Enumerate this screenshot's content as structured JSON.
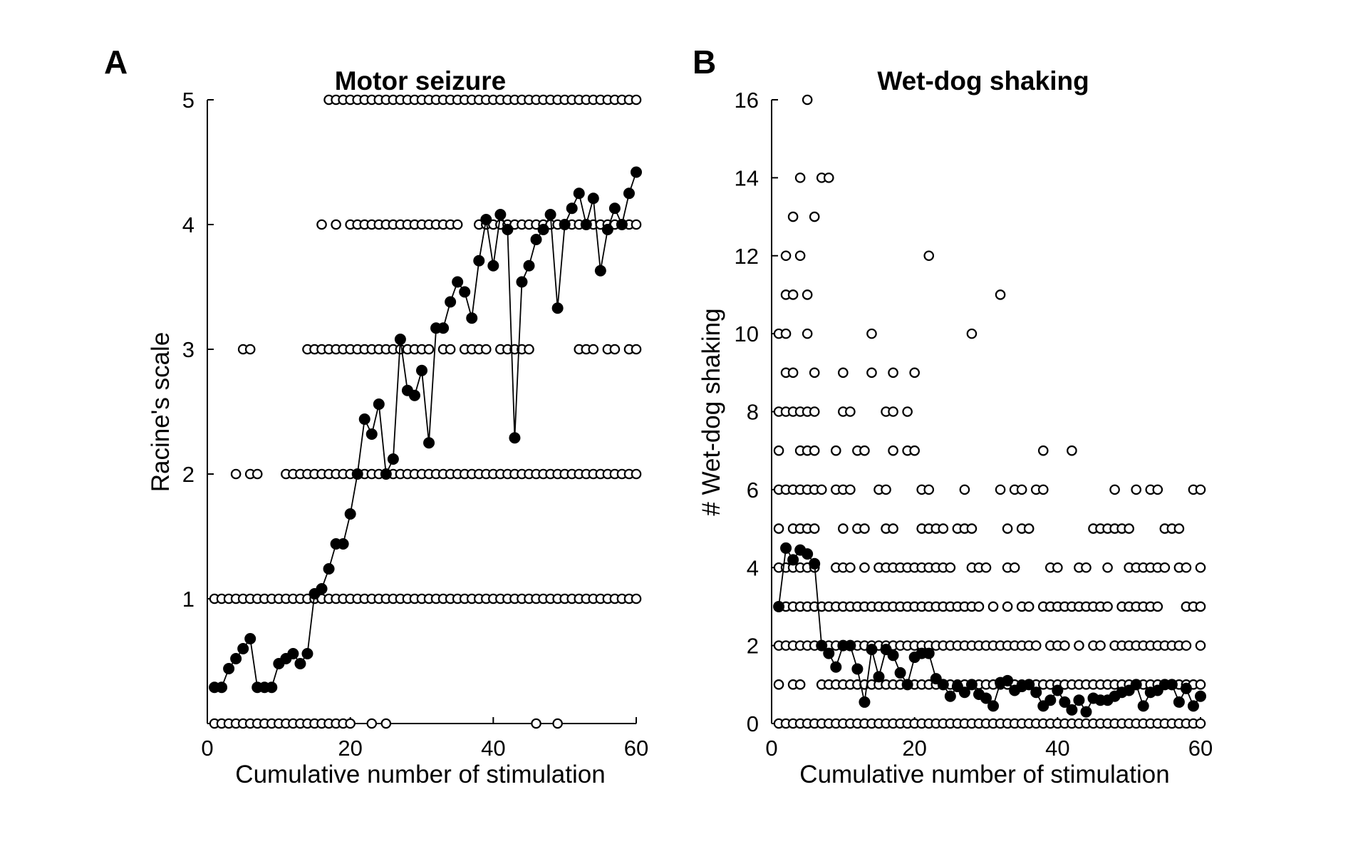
{
  "panels": [
    {
      "letter": "A",
      "title": "Motor seizure",
      "xlabel": "Cumulative number of stimulation",
      "ylabel": "Racine's scale",
      "xticks": [
        "0",
        "20",
        "40",
        "60"
      ],
      "yticks": [
        "1",
        "2",
        "3",
        "4",
        "5"
      ]
    },
    {
      "letter": "B",
      "title": "Wet-dog shaking",
      "xlabel": "Cumulative number of stimulation",
      "ylabel": "# Wet-dog shaking",
      "xticks": [
        "0",
        "20",
        "40",
        "60"
      ],
      "yticks": [
        "0",
        "2",
        "4",
        "6",
        "8",
        "10",
        "12",
        "14",
        "16"
      ]
    }
  ],
  "chart_data": [
    {
      "type": "scatter",
      "title": "Motor seizure",
      "xlabel": "Cumulative number of stimulation",
      "ylabel": "Racine's scale",
      "xlim": [
        0,
        60
      ],
      "ylim": [
        0,
        5
      ],
      "xticks": [
        0,
        20,
        40,
        60
      ],
      "yticks": [
        1,
        2,
        3,
        4,
        5
      ],
      "individual_points": {
        "style": "open-circle",
        "levels": [
          {
            "y": 0,
            "x_ranges": [
              [
                1,
                20
              ]
            ],
            "x_single": [
              23,
              25,
              46,
              49
            ]
          },
          {
            "y": 1,
            "x_ranges": [
              [
                1,
                60
              ]
            ],
            "x_single": []
          },
          {
            "y": 2,
            "x_ranges": [
              [
                11,
                60
              ]
            ],
            "x_single": [
              4,
              6,
              7
            ]
          },
          {
            "y": 3,
            "x_ranges": [
              [
                14,
                31
              ],
              [
                33,
                34
              ]
            ],
            "x_single": [
              5,
              6,
              36,
              37,
              38,
              39,
              41,
              42,
              43,
              44,
              45,
              52,
              53,
              54,
              56,
              57,
              59,
              60
            ]
          },
          {
            "y": 4,
            "x_ranges": [
              [
                20,
                35
              ],
              [
                38,
                60
              ]
            ],
            "x_single": [
              16,
              18
            ]
          },
          {
            "y": 5,
            "x_ranges": [
              [
                17,
                60
              ]
            ],
            "x_single": []
          }
        ]
      },
      "mean_series": {
        "style": "filled-circle-line",
        "x": [
          1,
          2,
          3,
          4,
          5,
          6,
          7,
          8,
          9,
          10,
          11,
          12,
          13,
          14,
          15,
          16,
          17,
          18,
          19,
          20,
          21,
          22,
          23,
          24,
          25,
          26,
          27,
          28,
          29,
          30,
          31,
          32,
          33,
          34,
          35,
          36,
          37,
          38,
          39,
          40,
          41,
          42,
          43,
          44,
          45,
          46,
          47,
          48,
          49,
          50,
          51,
          52,
          53,
          54,
          55,
          56,
          57,
          58,
          59,
          60
        ],
        "y": [
          0.29,
          0.29,
          0.44,
          0.52,
          0.6,
          0.68,
          0.29,
          0.29,
          0.29,
          0.48,
          0.52,
          0.56,
          0.48,
          0.56,
          1.04,
          1.08,
          1.24,
          1.44,
          1.44,
          1.68,
          2.0,
          2.44,
          2.32,
          2.56,
          2.0,
          2.12,
          3.08,
          2.67,
          2.63,
          2.83,
          2.25,
          3.17,
          3.17,
          3.38,
          3.54,
          3.46,
          3.25,
          3.71,
          4.04,
          3.67,
          4.08,
          3.96,
          2.29,
          3.54,
          3.67,
          3.88,
          3.96,
          4.08,
          3.33,
          4.0,
          4.13,
          4.25,
          4.0,
          4.21,
          3.63,
          3.96,
          4.13,
          4.0,
          4.25,
          4.42
        ]
      }
    },
    {
      "type": "scatter",
      "title": "Wet-dog shaking",
      "xlabel": "Cumulative number of stimulation",
      "ylabel": "# Wet-dog shaking",
      "xlim": [
        0,
        60
      ],
      "ylim": [
        0,
        16
      ],
      "xticks": [
        0,
        20,
        40,
        60
      ],
      "yticks": [
        0,
        2,
        4,
        6,
        8,
        10,
        12,
        14,
        16
      ],
      "individual_points": {
        "style": "open-circle",
        "levels": [
          {
            "y": 0,
            "x_ranges": [
              [
                1,
                60
              ]
            ],
            "x_single": []
          },
          {
            "y": 1,
            "x_ranges": [
              [
                7,
                60
              ]
            ],
            "x_single": [
              1,
              3,
              4
            ]
          },
          {
            "y": 2,
            "x_ranges": [
              [
                1,
                30
              ],
              [
                31,
                37
              ],
              [
                39,
                41
              ]
            ],
            "x_single": [
              43,
              45,
              46,
              48,
              49,
              50,
              51,
              52,
              53,
              54,
              55,
              56,
              57,
              58,
              60
            ]
          },
          {
            "y": 3,
            "x_ranges": [
              [
                1,
                20
              ],
              [
                21,
                29
              ],
              [
                38,
                47
              ],
              [
                49,
                54
              ],
              [
                58,
                60
              ]
            ],
            "x_single": [
              31,
              33,
              35,
              36
            ]
          },
          {
            "y": 4,
            "x_ranges": [
              [
                15,
                23
              ],
              [
                50,
                55
              ]
            ],
            "x_single": [
              1,
              2,
              3,
              4,
              5,
              6,
              9,
              10,
              11,
              13,
              24,
              25,
              28,
              29,
              30,
              33,
              34,
              39,
              40,
              43,
              44,
              47,
              57,
              58,
              60
            ]
          },
          {
            "y": 5,
            "x_ranges": [
              [
                45,
                50
              ]
            ],
            "x_single": [
              1,
              3,
              4,
              5,
              6,
              10,
              12,
              13,
              16,
              17,
              21,
              22,
              23,
              24,
              26,
              27,
              28,
              33,
              35,
              36,
              55,
              56,
              57
            ]
          },
          {
            "y": 6,
            "x_ranges": [],
            "x_single": [
              1,
              2,
              3,
              4,
              5,
              6,
              7,
              9,
              10,
              11,
              15,
              16,
              21,
              22,
              27,
              32,
              34,
              35,
              37,
              38,
              48,
              51,
              53,
              54,
              59,
              60
            ]
          },
          {
            "y": 7,
            "x_ranges": [],
            "x_single": [
              1,
              4,
              5,
              6,
              9,
              12,
              13,
              17,
              19,
              20,
              38,
              42
            ]
          },
          {
            "y": 8,
            "x_ranges": [],
            "x_single": [
              1,
              2,
              3,
              4,
              5,
              6,
              10,
              11,
              16,
              17,
              19
            ]
          },
          {
            "y": 9,
            "x_ranges": [],
            "x_single": [
              2,
              3,
              6,
              10,
              14,
              17,
              20
            ]
          },
          {
            "y": 10,
            "x_ranges": [],
            "x_single": [
              1,
              2,
              5,
              14,
              28
            ]
          },
          {
            "y": 11,
            "x_ranges": [],
            "x_single": [
              2,
              3,
              5,
              32
            ]
          },
          {
            "y": 12,
            "x_ranges": [],
            "x_single": [
              2,
              4,
              22
            ]
          },
          {
            "y": 13,
            "x_ranges": [],
            "x_single": [
              3,
              6
            ]
          },
          {
            "y": 14,
            "x_ranges": [],
            "x_single": [
              4,
              7,
              8
            ]
          },
          {
            "y": 16,
            "x_ranges": [],
            "x_single": [
              5
            ]
          }
        ]
      },
      "mean_series": {
        "style": "filled-circle-line",
        "x": [
          1,
          2,
          3,
          4,
          5,
          6,
          7,
          8,
          9,
          10,
          11,
          12,
          13,
          14,
          15,
          16,
          17,
          18,
          19,
          20,
          21,
          22,
          23,
          24,
          25,
          26,
          27,
          28,
          29,
          30,
          31,
          32,
          33,
          34,
          35,
          36,
          37,
          38,
          39,
          40,
          41,
          42,
          43,
          44,
          45,
          46,
          47,
          48,
          49,
          50,
          51,
          52,
          53,
          54,
          55,
          56,
          57,
          58,
          59,
          60
        ],
        "y": [
          3.0,
          4.5,
          4.2,
          4.45,
          4.35,
          4.1,
          2.0,
          1.8,
          1.45,
          2.0,
          2.0,
          1.4,
          0.55,
          1.9,
          1.2,
          1.9,
          1.75,
          1.3,
          1.0,
          1.7,
          1.8,
          1.8,
          1.15,
          1.0,
          0.7,
          0.95,
          0.8,
          1.0,
          0.75,
          0.65,
          0.45,
          1.05,
          1.1,
          0.85,
          0.95,
          1.0,
          0.8,
          0.45,
          0.6,
          0.85,
          0.55,
          0.35,
          0.6,
          0.3,
          0.65,
          0.6,
          0.6,
          0.7,
          0.8,
          0.85,
          1.0,
          0.45,
          0.8,
          0.85,
          1.0,
          1.0,
          0.55,
          0.9,
          0.45,
          0.7
        ]
      }
    }
  ]
}
